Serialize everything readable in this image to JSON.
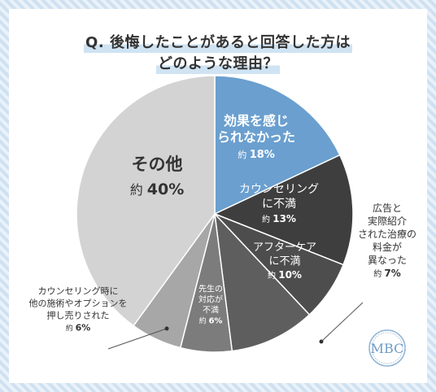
{
  "title": {
    "line1": "Q. 後悔したことがあると回答した方は",
    "line2": "どのような理由？"
  },
  "logo": "MBC",
  "chart_data": {
    "type": "pie",
    "title": "Q. 後悔したことがあると回答した方は どのような理由？",
    "unit": "%",
    "slices": [
      {
        "label": "効果を感じられなかった",
        "display_lines": [
          "効果を感じ",
          "られなかった"
        ],
        "prefix": "約",
        "value": 18,
        "value_text": "18%",
        "color": "#6a9fcf",
        "text_color": "#ffffff"
      },
      {
        "label": "カウンセリングに不満",
        "display_lines": [
          "カウンセリング",
          "に不満"
        ],
        "prefix": "約",
        "value": 13,
        "value_text": "13%",
        "color": "#3e3e3e",
        "text_color": "#ffffff"
      },
      {
        "label": "広告と実際紹介された治療の料金が異なった",
        "display_lines": [
          "広告と",
          "実際紹介",
          "された治療の",
          "料金が",
          "異なった"
        ],
        "prefix": "約",
        "value": 7,
        "value_text": "7%",
        "color": "#4d4d4d",
        "text_color": "#333333"
      },
      {
        "label": "アフターケアに不満",
        "display_lines": [
          "アフターケア",
          "に不満"
        ],
        "prefix": "約",
        "value": 10,
        "value_text": "10%",
        "color": "#5e5e5e",
        "text_color": "#ffffff"
      },
      {
        "label": "先生の対応が不満",
        "display_lines": [
          "先生の",
          "対応が",
          "不満"
        ],
        "prefix": "約",
        "value": 6,
        "value_text": "6%",
        "color": "#7c7c7c",
        "text_color": "#ffffff"
      },
      {
        "label": "カウンセリング時に他の施術やオプションを押し売りされた",
        "display_lines": [
          "カウンセリング時に",
          "他の施術やオプションを",
          "押し売りされた"
        ],
        "prefix": "約",
        "value": 6,
        "value_text": "6%",
        "color": "#a7a7a7",
        "text_color": "#333333"
      },
      {
        "label": "その他",
        "display_lines": [
          "その他"
        ],
        "prefix": "約",
        "value": 40,
        "value_text": "40%",
        "color": "#d3d3d3",
        "text_color": "#333333"
      }
    ]
  }
}
